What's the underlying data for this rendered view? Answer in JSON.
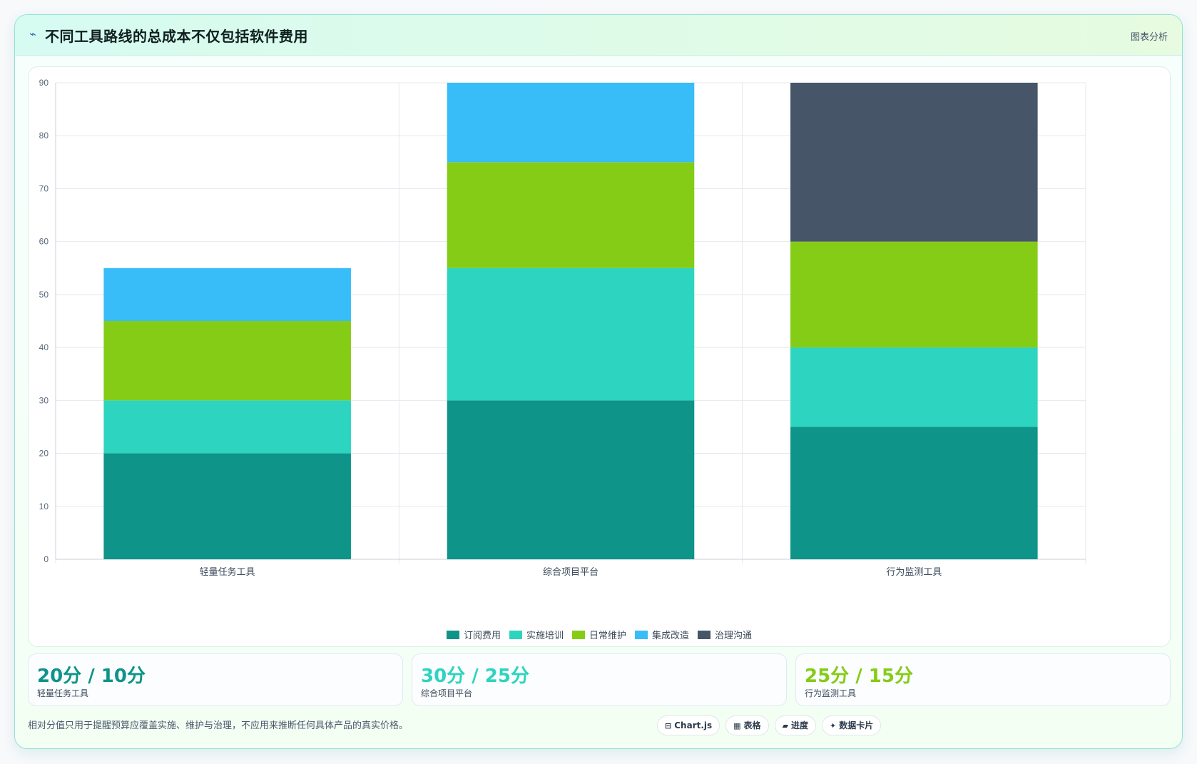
{
  "header": {
    "title": "不同工具路线的总成本不仅包括软件费用",
    "tag": "图表分析"
  },
  "chart_data": {
    "type": "bar",
    "stacked": true,
    "categories": [
      "轻量任务工具",
      "综合项目平台",
      "行为监测工具"
    ],
    "series": [
      {
        "name": "订阅费用",
        "color": "#0e9488",
        "values": [
          20,
          30,
          25
        ]
      },
      {
        "name": "实施培训",
        "color": "#2dd4bf",
        "values": [
          10,
          25,
          15
        ]
      },
      {
        "name": "日常维护",
        "color": "#84cc16",
        "values": [
          15,
          20,
          20
        ]
      },
      {
        "name": "集成改造",
        "color": "#38bdf8",
        "values": [
          10,
          15,
          0
        ]
      },
      {
        "name": "治理沟通",
        "color": "#475569",
        "values": [
          0,
          0,
          30
        ]
      }
    ],
    "ylim": [
      0,
      90
    ],
    "yticks": [
      0,
      10,
      20,
      30,
      40,
      50,
      60,
      70,
      80,
      90
    ],
    "grid": true,
    "legend": "bottom-center"
  },
  "stats": [
    {
      "value": "20分 / 10分",
      "label": "轻量任务工具",
      "color": "#0e9488"
    },
    {
      "value": "30分 / 25分",
      "label": "综合项目平台",
      "color": "#2dd4bf"
    },
    {
      "value": "25分 / 15分",
      "label": "行为监测工具",
      "color": "#84cc16"
    }
  ],
  "footnote": "相对分值只用于提醒预算应覆盖实施、维护与治理，不应用来推断任何具体产品的真实价格。",
  "chips": [
    {
      "icon": "chart-icon",
      "glyph": "⊟",
      "label": "Chart.js"
    },
    {
      "icon": "table-icon",
      "glyph": "▦",
      "label": "表格"
    },
    {
      "icon": "progress-icon",
      "glyph": "▰",
      "label": "进度"
    },
    {
      "icon": "sparkle-icon",
      "glyph": "✦",
      "label": "数据卡片"
    }
  ]
}
